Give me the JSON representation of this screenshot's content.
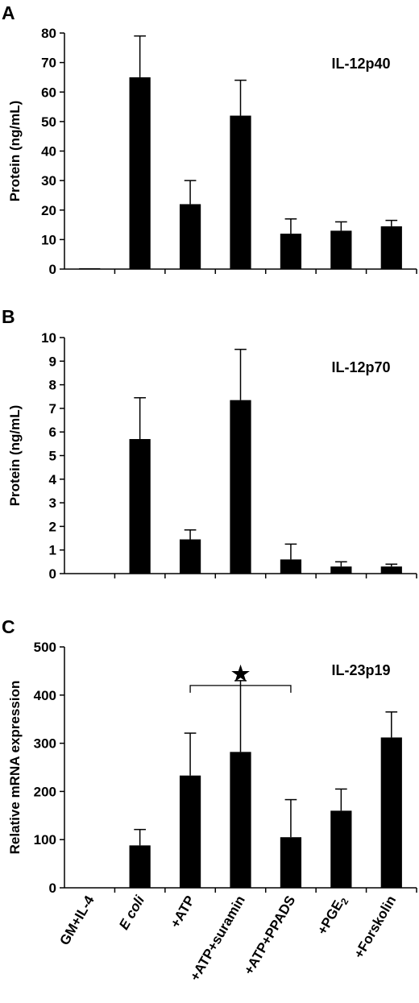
{
  "chart_data": [
    {
      "panel_label": "A",
      "type": "bar",
      "title": "IL-12p40",
      "ylabel": "Protein (ng/mL)",
      "xlabel": "",
      "ylim": [
        0,
        80
      ],
      "yticks": [
        "0",
        "10",
        "20",
        "30",
        "40",
        "50",
        "60",
        "70",
        "80"
      ],
      "categories": [
        "GM+IL-4",
        "E coli",
        "+ATP",
        "+ATP+suramin",
        "+ATP+PPADS",
        "+PGE2",
        "+Forskolin"
      ],
      "values": [
        0.3,
        65,
        22,
        52,
        12,
        13,
        14.5
      ],
      "errors": [
        0,
        14,
        8,
        12,
        5,
        3,
        2
      ],
      "color": "#000000",
      "grid": false,
      "legend": "none"
    },
    {
      "panel_label": "B",
      "type": "bar",
      "title": "IL-12p70",
      "ylabel": "Protein (ng/mL)",
      "xlabel": "",
      "ylim": [
        0,
        10
      ],
      "yticks": [
        "0",
        "1",
        "2",
        "3",
        "4",
        "5",
        "6",
        "7",
        "8",
        "9",
        "10"
      ],
      "categories": [
        "GM+IL-4",
        "E coli",
        "+ATP",
        "+ATP+suramin",
        "+ATP+PPADS",
        "+PGE2",
        "+Forskolin"
      ],
      "values": [
        0,
        5.7,
        1.45,
        7.35,
        0.6,
        0.3,
        0.3
      ],
      "errors": [
        0,
        1.75,
        0.4,
        2.15,
        0.65,
        0.2,
        0.1
      ],
      "color": "#000000",
      "grid": false,
      "legend": "none"
    },
    {
      "panel_label": "C",
      "type": "bar",
      "title": "IL-23p19",
      "ylabel": "Relative mRNA expression",
      "xlabel": "",
      "ylim": [
        0,
        500
      ],
      "yticks": [
        "0",
        "100",
        "200",
        "300",
        "400",
        "500"
      ],
      "categories": [
        "GM+IL-4",
        "E coli",
        "+ATP",
        "+ATP+suramin",
        "+ATP+PPADS",
        "+PGE2",
        "+Forskolin"
      ],
      "category_labels": [
        {
          "text": "GM+IL-4",
          "sub": ""
        },
        {
          "text": "E coli",
          "sub": "",
          "italic": true
        },
        {
          "text": "+ATP",
          "sub": ""
        },
        {
          "text": "+ATP+suramin",
          "sub": ""
        },
        {
          "text": "+ATP+PPADS",
          "sub": ""
        },
        {
          "text": "+PGE",
          "sub": "2"
        },
        {
          "text": "+Forskolin",
          "sub": ""
        }
      ],
      "values": [
        0,
        88,
        233,
        282,
        105,
        160,
        312
      ],
      "errors": [
        0,
        33,
        88,
        148,
        78,
        45,
        53
      ],
      "color": "#000000",
      "grid": false,
      "legend": "none",
      "significance": {
        "from_index": 2,
        "to_index": 4,
        "symbol": "★"
      }
    }
  ]
}
